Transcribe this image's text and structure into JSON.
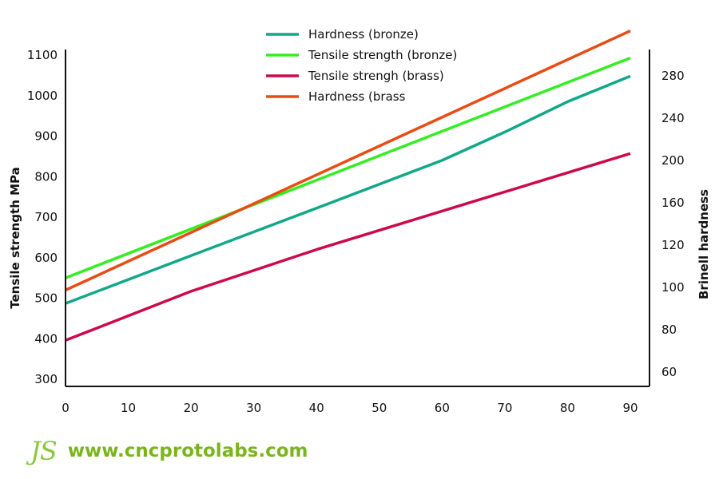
{
  "chart_data": {
    "type": "line",
    "title": "",
    "xlabel": "",
    "ylabel": "Tensile strength MPa",
    "y2label": "Brinell hardness",
    "xlim": [
      0,
      90
    ],
    "ylim": [
      300,
      1100
    ],
    "y2lim": [
      60,
      280
    ],
    "xticks": [
      0,
      10,
      20,
      30,
      40,
      50,
      60,
      70,
      80,
      90
    ],
    "yticks": [
      300,
      400,
      500,
      600,
      700,
      800,
      900,
      1000,
      1100
    ],
    "y2ticks": [
      60,
      80,
      100,
      120,
      160,
      200,
      240,
      280
    ],
    "grid": false,
    "legend_position": "top-center",
    "series": [
      {
        "name": "Hardness (bronze)",
        "color": "#11a888",
        "axis": "left",
        "x": [
          0,
          20,
          40,
          60,
          70,
          80,
          90
        ],
        "y": [
          487,
          605,
          722,
          840,
          910,
          985,
          1048
        ]
      },
      {
        "name": "Tensile strength (bronze)",
        "color": "#33ee22",
        "axis": "left",
        "x": [
          0,
          90
        ],
        "y": [
          550,
          1093
        ]
      },
      {
        "name": "Tensile strengh (brass)",
        "color": "#cc0a4a",
        "axis": "left",
        "x": [
          0,
          20,
          40,
          60,
          90
        ],
        "y": [
          396,
          517,
          620,
          715,
          857
        ]
      },
      {
        "name": "Hardness (brass",
        "color": "#e84c12",
        "axis": "left",
        "x": [
          0,
          90
        ],
        "y": [
          520,
          1160
        ]
      }
    ]
  },
  "footer": {
    "logo_text": "JS",
    "website": "www.cncprotolabs.com"
  }
}
